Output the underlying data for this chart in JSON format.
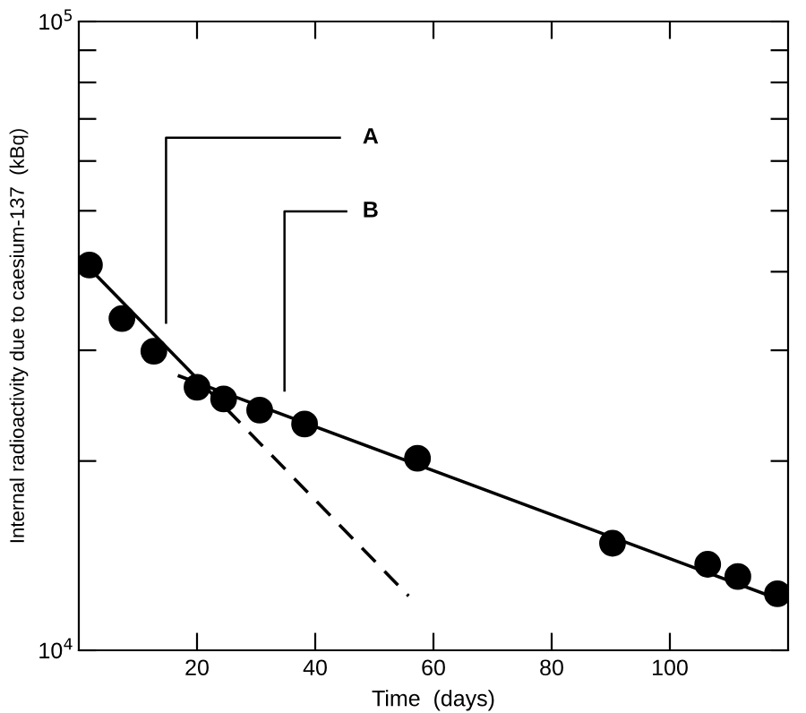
{
  "chart_data": {
    "type": "scatter",
    "xlabel": "Time  (days)",
    "ylabel": "Internal radioactivity due to caesium-137  (kBq)",
    "log": "y",
    "xlim": [
      0,
      120
    ],
    "ylim": [
      10000,
      100000
    ],
    "xticks": [
      20,
      40,
      60,
      80,
      100
    ],
    "yticks": [
      {
        "value": 10000,
        "label": "10$^{4}$"
      },
      {
        "value": 20000,
        "label": null
      },
      {
        "value": 30000,
        "label": null
      },
      {
        "value": 40000,
        "label": null
      },
      {
        "value": 50000,
        "label": null
      },
      {
        "value": 60000,
        "label": null
      },
      {
        "value": 70000,
        "label": null
      },
      {
        "value": 80000,
        "label": null
      },
      {
        "value": 90000,
        "label": null
      },
      {
        "value": 100000,
        "label": "10$^{5}$"
      }
    ],
    "grid": false,
    "legend": false,
    "series": [
      {
        "color": "#000000",
        "marker": "circle",
        "x": [
          1.8,
          7.3,
          12.7,
          20,
          24.5,
          30.6,
          38.2,
          57.3,
          90.3,
          106.4,
          111.5,
          118.2
        ],
        "values": [
          41000,
          33700,
          29900,
          26200,
          25100,
          24100,
          22900,
          20200,
          14800,
          13700,
          13100,
          12300
        ]
      },
      {
        "type": "line",
        "color": "#000000",
        "line_style": "solid",
        "marker": "none",
        "x": [
          1.8,
          25
        ],
        "values": [
          40500,
          24200
        ]
      },
      {
        "type": "line",
        "color": "#000000",
        "line_style": "dashed",
        "marker": "none",
        "x": [
          25,
          55.8
        ],
        "values": [
          24200,
          12200
        ]
      },
      {
        "type": "line",
        "color": "#000000",
        "line_style": "solid",
        "marker": "none",
        "x": [
          17,
          119
        ],
        "values": [
          27300,
          12000
        ]
      }
    ],
    "annotations": [
      "A",
      "B"
    ]
  }
}
